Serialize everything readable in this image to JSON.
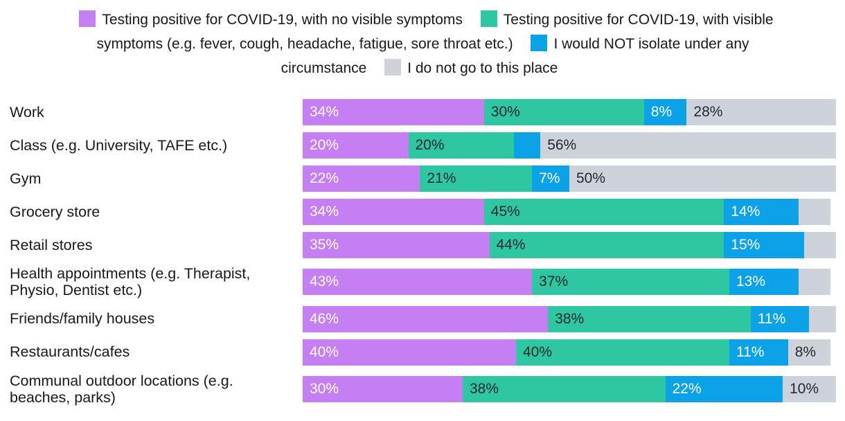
{
  "colors": {
    "no_symptoms": "#c57ff2",
    "visible_symptoms": "#2ec7a2",
    "no_isolate": "#0ca2e8",
    "not_visited": "#cdd2db",
    "label_light": "#ffffff",
    "label_dark": "#26282b",
    "text": "#17181c",
    "background": "#ffffff"
  },
  "legend": {
    "items": [
      {
        "key": "no_symptoms",
        "label": "Testing positive for COVID-19, with no visible symptoms",
        "color": "#c57ff2"
      },
      {
        "key": "visible_symptoms",
        "label": "Testing positive for COVID-19, with visible symptoms (e.g. fever, cough, headache, fatigue, sore throat etc.)",
        "color": "#2ec7a2"
      },
      {
        "key": "no_isolate",
        "label": "I would NOT isolate under any circumstance",
        "color": "#0ca2e8"
      },
      {
        "key": "not_visited",
        "label": "I do not go to this place",
        "color": "#cdd2db"
      }
    ]
  },
  "chart_data": {
    "type": "bar",
    "orientation": "horizontal",
    "stacked": true,
    "unit": "%",
    "xlim": [
      0,
      100
    ],
    "grid": false,
    "legend_position": "top-center",
    "categories": [
      "Work",
      "Class (e.g. University, TAFE etc.)",
      "Gym",
      "Grocery store",
      "Retail stores",
      "Health appointments (e.g. Therapist, Physio, Dentist etc.)",
      "Friends/family houses",
      "Restaurants/cafes",
      "Communal outdoor locations (e.g. beaches, parks)"
    ],
    "series": [
      {
        "key": "no_symptoms",
        "name": "Testing positive for COVID-19, with no visible symptoms",
        "color": "#c57ff2",
        "label_color": "#ffffff",
        "values": [
          34,
          20,
          22,
          34,
          35,
          43,
          46,
          40,
          30
        ],
        "labels": [
          "34%",
          "20%",
          "22%",
          "34%",
          "35%",
          "43%",
          "46%",
          "40%",
          "30%"
        ]
      },
      {
        "key": "visible_symptoms",
        "name": "Testing positive for COVID-19, with visible symptoms (e.g. fever, cough, headache, fatigue, sore throat etc.)",
        "color": "#2ec7a2",
        "label_color": "#26282b",
        "values": [
          30,
          20,
          21,
          45,
          44,
          37,
          38,
          40,
          38
        ],
        "labels": [
          "30%",
          "20%",
          "21%",
          "45%",
          "44%",
          "37%",
          "38%",
          "40%",
          "38%"
        ]
      },
      {
        "key": "no_isolate",
        "name": "I would NOT isolate under any circumstance",
        "color": "#0ca2e8",
        "label_color": "#ffffff",
        "values": [
          8,
          5,
          7,
          14,
          15,
          13,
          11,
          11,
          22
        ],
        "labels": [
          "8%",
          "",
          "7%",
          "14%",
          "15%",
          "13%",
          "11%",
          "11%",
          "22%"
        ]
      },
      {
        "key": "not_visited",
        "name": "I do not go to this place",
        "color": "#cdd2db",
        "label_color": "#26282b",
        "values": [
          28,
          56,
          50,
          6,
          6,
          6,
          5,
          8,
          10
        ],
        "labels": [
          "28%",
          "56%",
          "50%",
          "",
          "",
          "",
          "",
          "8%",
          "10%"
        ]
      }
    ]
  }
}
